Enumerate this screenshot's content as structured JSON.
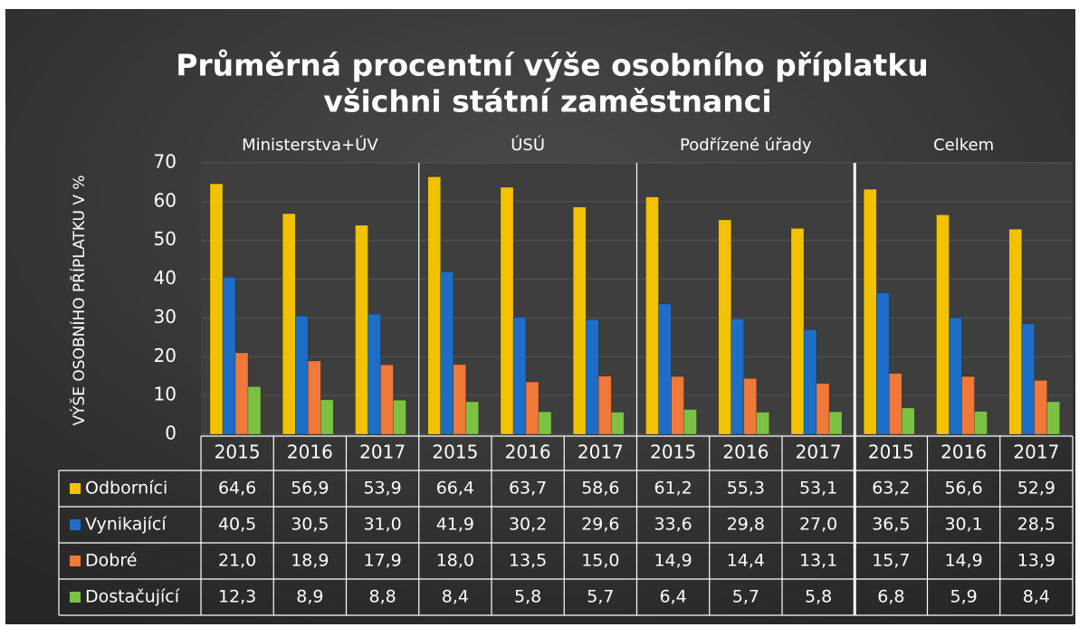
{
  "chart_data": {
    "type": "bar",
    "title": "Průměrná procentní výše osobního příplatku",
    "subtitle": "všichni státní zaměstnanci",
    "ylabel": "VÝŠE OSOBNÍHO PŘÍPLATKU V %",
    "groups": [
      "Ministerstva+ÚV",
      "ÚSÚ",
      "Podřízené úřady",
      "Celkem"
    ],
    "categories": [
      "2015",
      "2016",
      "2017",
      "2015",
      "2016",
      "2017",
      "2015",
      "2016",
      "2017",
      "2015",
      "2016",
      "2017"
    ],
    "ylim": [
      0,
      70
    ],
    "yticks": [
      0,
      10,
      20,
      30,
      40,
      50,
      60,
      70
    ],
    "grid": true,
    "series": [
      {
        "name": "Odborníci",
        "color": "#f2c200",
        "values": [
          64.6,
          56.9,
          53.9,
          66.4,
          63.7,
          58.6,
          61.2,
          55.3,
          53.1,
          63.2,
          56.6,
          52.9
        ],
        "value_labels": [
          "64,6",
          "56,9",
          "53,9",
          "66,4",
          "63,7",
          "58,6",
          "61,2",
          "55,3",
          "53,1",
          "63,2",
          "56,6",
          "52,9"
        ]
      },
      {
        "name": "Vynikající",
        "color": "#1e6ec8",
        "values": [
          40.5,
          30.5,
          31.0,
          41.9,
          30.2,
          29.6,
          33.6,
          29.8,
          27.0,
          36.5,
          30.1,
          28.5
        ],
        "value_labels": [
          "40,5",
          "30,5",
          "31,0",
          "41,9",
          "30,2",
          "29,6",
          "33,6",
          "29,8",
          "27,0",
          "36,5",
          "30,1",
          "28,5"
        ]
      },
      {
        "name": "Dobré",
        "color": "#f07838",
        "values": [
          21.0,
          18.9,
          17.9,
          18.0,
          13.5,
          15.0,
          14.9,
          14.4,
          13.1,
          15.7,
          14.9,
          13.9
        ],
        "value_labels": [
          "21,0",
          "18,9",
          "17,9",
          "18,0",
          "13,5",
          "15,0",
          "14,9",
          "14,4",
          "13,1",
          "15,7",
          "14,9",
          "13,9"
        ]
      },
      {
        "name": "Dostačující",
        "color": "#7cc242",
        "values": [
          12.3,
          8.9,
          8.8,
          8.4,
          5.8,
          5.7,
          6.4,
          5.7,
          5.8,
          6.8,
          5.9,
          8.4
        ],
        "value_labels": [
          "12,3",
          "8,9",
          "8,8",
          "8,4",
          "5,8",
          "5,7",
          "6,4",
          "5,7",
          "5,8",
          "6,8",
          "5,9",
          "8,4"
        ]
      }
    ]
  }
}
